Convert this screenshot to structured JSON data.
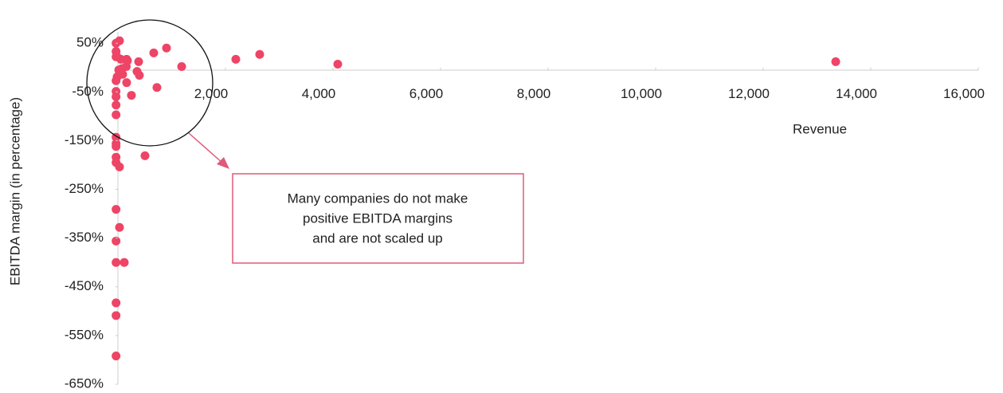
{
  "chart_data": {
    "type": "scatter",
    "xlabel": "Revenue",
    "ylabel": "EBITDA margin (in percentage)",
    "annotation": {
      "lines": [
        "Many companies do not make",
        "positive EBITDA margins",
        "and are not scaled up"
      ]
    },
    "color": "#ee4466",
    "x": [
      74,
      10,
      10,
      10,
      30,
      100,
      207,
      222,
      430,
      711,
      948,
      1230,
      2237,
      2681,
      4133,
      13393,
      296,
      770,
      400,
      444,
      207,
      133,
      30,
      10,
      10,
      10,
      10,
      10,
      548,
      10,
      10,
      10,
      10,
      10,
      74,
      10,
      74,
      10,
      10,
      163,
      10,
      10,
      10,
      200,
      120,
      60
    ],
    "y": [
      55,
      50,
      33,
      22,
      22,
      17,
      17,
      14,
      12,
      30,
      40,
      2,
      17,
      27,
      7,
      12,
      -57,
      -41,
      -8,
      -16,
      -31,
      -14,
      -19,
      -27,
      -49,
      -60,
      -77,
      -97,
      -181,
      -143,
      -156,
      -162,
      -184,
      -195,
      -204,
      -291,
      -328,
      -356,
      -400,
      -400,
      -483,
      -509,
      -592,
      2,
      -2,
      -5
    ],
    "xlim": [
      0,
      16000
    ],
    "xticks": [
      {
        "value": 2000,
        "label": "2,000"
      },
      {
        "value": 4000,
        "label": "4,000"
      },
      {
        "value": 6000,
        "label": "6,000"
      },
      {
        "value": 8000,
        "label": "8,000"
      },
      {
        "value": 10000,
        "label": "10,000"
      },
      {
        "value": 12000,
        "label": "12,000"
      },
      {
        "value": 14000,
        "label": "14,000"
      },
      {
        "value": 16000,
        "label": "16,000"
      }
    ],
    "ylim": [
      -650,
      75
    ],
    "yticks": [
      {
        "value": 50,
        "label": "50%"
      },
      {
        "value": -50,
        "label": "-50%"
      },
      {
        "value": -150,
        "label": "-150%"
      },
      {
        "value": -250,
        "label": "-250%"
      },
      {
        "value": -350,
        "label": "-350%"
      },
      {
        "value": -450,
        "label": "-450%"
      },
      {
        "value": -550,
        "label": "-550%"
      },
      {
        "value": -650,
        "label": "-650%"
      }
    ]
  }
}
